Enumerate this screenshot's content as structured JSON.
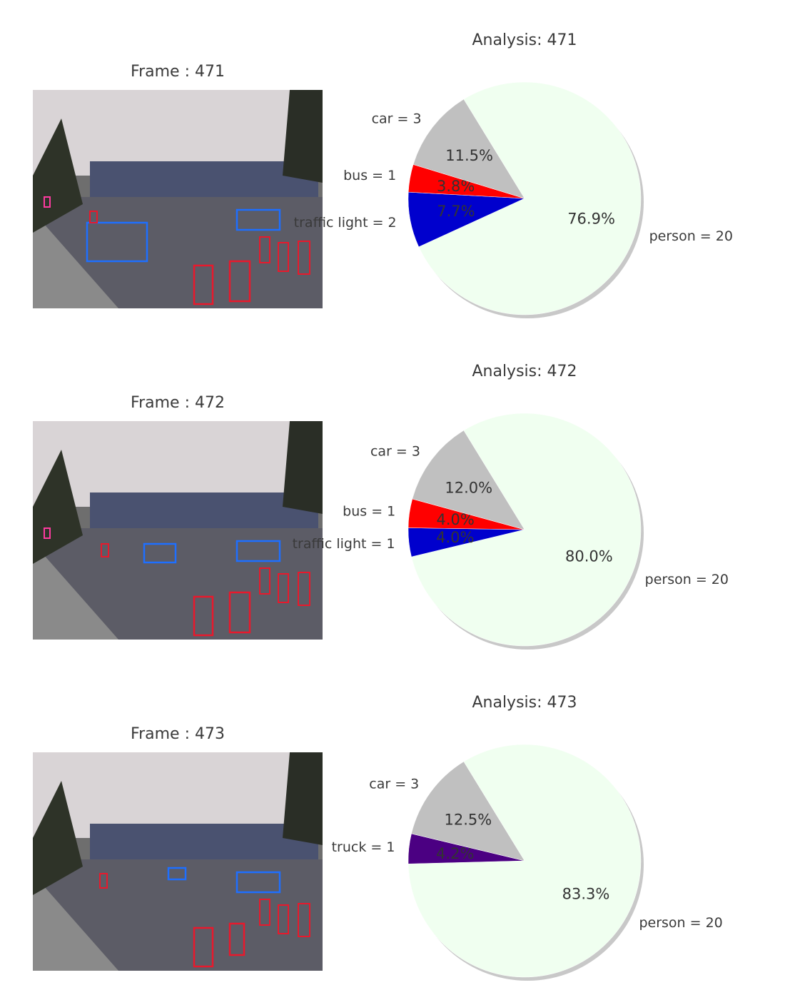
{
  "chart_data": [
    {
      "type": "pie",
      "title": "Analysis: 471",
      "frame_title": "Frame : 471",
      "slices": [
        {
          "label": "person = 20",
          "value": 20,
          "pct": "76.9%",
          "color": "#f0fff0"
        },
        {
          "label": "traffic light = 2",
          "value": 2,
          "pct": "7.7%",
          "color": "#0000cd"
        },
        {
          "label": "bus = 1",
          "value": 1,
          "pct": "3.8%",
          "color": "#ff0000"
        },
        {
          "label": "car = 3",
          "value": 3,
          "pct": "11.5%",
          "color": "#c0c0c0"
        }
      ]
    },
    {
      "type": "pie",
      "title": "Analysis: 472",
      "frame_title": "Frame : 472",
      "slices": [
        {
          "label": "person = 20",
          "value": 20,
          "pct": "80.0%",
          "color": "#f0fff0"
        },
        {
          "label": "traffic light = 1",
          "value": 1,
          "pct": "4.0%",
          "color": "#0000cd"
        },
        {
          "label": "bus = 1",
          "value": 1,
          "pct": "4.0%",
          "color": "#ff0000"
        },
        {
          "label": "car = 3",
          "value": 3,
          "pct": "12.0%",
          "color": "#c0c0c0"
        }
      ]
    },
    {
      "type": "pie",
      "title": "Analysis: 473",
      "frame_title": "Frame : 473",
      "slices": [
        {
          "label": "person = 20",
          "value": 20,
          "pct": "83.3%",
          "color": "#f0fff0"
        },
        {
          "label": "truck = 1",
          "value": 1,
          "pct": "4.2%",
          "color": "#4b0082"
        },
        {
          "label": "car = 3",
          "value": 3,
          "pct": "12.5%",
          "color": "#c0c0c0"
        }
      ]
    }
  ]
}
